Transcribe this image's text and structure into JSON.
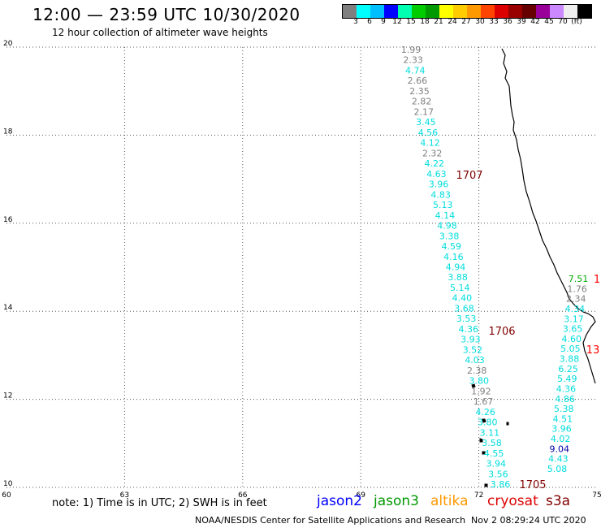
{
  "header": {
    "title": "12:00 — 23:59 UTC 10/30/2020",
    "subtitle": "12 hour collection of altimeter wave heights"
  },
  "colorbar": {
    "colors": [
      "#7f7f7f",
      "#00ffff",
      "#00bfff",
      "#0000ff",
      "#00ffb0",
      "#00cc00",
      "#009900",
      "#ffff00",
      "#ffcc00",
      "#ff9900",
      "#ff4400",
      "#dd0000",
      "#990000",
      "#660000",
      "#990099",
      "#cc88ff",
      "#eeeeee",
      "#000000"
    ],
    "labels": [
      "3",
      "6",
      "9",
      "12",
      "15",
      "18",
      "21",
      "24",
      "27",
      "30",
      "33",
      "36",
      "39",
      "42",
      "45",
      "70",
      "(ft)"
    ]
  },
  "axes": {
    "x_ticks": [
      "60",
      "63",
      "66",
      "69",
      "72",
      "75"
    ],
    "y_ticks": [
      "20",
      "18",
      "16",
      "14",
      "12",
      "10"
    ]
  },
  "tracks": {
    "left": [
      {
        "v": "1.99",
        "c": "#808080"
      },
      {
        "v": "2.33",
        "c": "#808080"
      },
      {
        "v": "4.74",
        "c": "#00dddd"
      },
      {
        "v": "2.66",
        "c": "#808080"
      },
      {
        "v": "2.35",
        "c": "#808080"
      },
      {
        "v": "2.82",
        "c": "#808080"
      },
      {
        "v": "2.17",
        "c": "#808080"
      },
      {
        "v": "3.45",
        "c": "#00dddd"
      },
      {
        "v": "4.56",
        "c": "#00dddd"
      },
      {
        "v": "4.12",
        "c": "#00dddd"
      },
      {
        "v": "2.32",
        "c": "#808080"
      },
      {
        "v": "4.22",
        "c": "#00dddd"
      },
      {
        "v": "4.63",
        "c": "#00dddd"
      },
      {
        "v": "3.96",
        "c": "#00dddd"
      },
      {
        "v": "4.83",
        "c": "#00dddd"
      },
      {
        "v": "5.13",
        "c": "#00dddd"
      },
      {
        "v": "4.14",
        "c": "#00dddd"
      },
      {
        "v": "4.98",
        "c": "#00dddd"
      },
      {
        "v": "3.38",
        "c": "#00dddd"
      },
      {
        "v": "4.59",
        "c": "#00dddd"
      },
      {
        "v": "4.16",
        "c": "#00dddd"
      },
      {
        "v": "4.94",
        "c": "#00dddd"
      },
      {
        "v": "3.88",
        "c": "#00dddd"
      },
      {
        "v": "5.14",
        "c": "#00dddd"
      },
      {
        "v": "4.40",
        "c": "#00dddd"
      },
      {
        "v": "3.68",
        "c": "#00dddd"
      },
      {
        "v": "3.53",
        "c": "#00dddd"
      },
      {
        "v": "4.36",
        "c": "#00dddd"
      },
      {
        "v": "3.93",
        "c": "#00dddd"
      },
      {
        "v": "3.52",
        "c": "#00dddd"
      },
      {
        "v": "4.03",
        "c": "#00dddd"
      },
      {
        "v": "2.38",
        "c": "#808080"
      },
      {
        "v": "3.80",
        "c": "#00dddd"
      },
      {
        "v": "1.92",
        "c": "#808080"
      },
      {
        "v": "1.67",
        "c": "#808080"
      },
      {
        "v": "4.26",
        "c": "#00dddd"
      },
      {
        "v": "3.80",
        "c": "#00dddd"
      },
      {
        "v": "3.11",
        "c": "#00dddd"
      },
      {
        "v": "3.58",
        "c": "#00dddd"
      },
      {
        "v": "4.55",
        "c": "#00dddd"
      },
      {
        "v": "3.94",
        "c": "#00dddd"
      },
      {
        "v": "3.56",
        "c": "#00dddd"
      },
      {
        "v": "3.86",
        "c": "#00dddd"
      }
    ],
    "right": [
      {
        "v": "7.51",
        "c": "#00aa00"
      },
      {
        "v": "1.76",
        "c": "#808080"
      },
      {
        "v": "2.34",
        "c": "#808080"
      },
      {
        "v": "4.34",
        "c": "#00dddd"
      },
      {
        "v": "3.17",
        "c": "#00dddd"
      },
      {
        "v": "3.65",
        "c": "#00dddd"
      },
      {
        "v": "4.60",
        "c": "#00dddd"
      },
      {
        "v": "5.05",
        "c": "#00dddd"
      },
      {
        "v": "3.88",
        "c": "#00dddd"
      },
      {
        "v": "6.25",
        "c": "#00dddd"
      },
      {
        "v": "5.49",
        "c": "#00dddd"
      },
      {
        "v": "4.36",
        "c": "#00dddd"
      },
      {
        "v": "4.86",
        "c": "#00dddd"
      },
      {
        "v": "5.38",
        "c": "#00dddd"
      },
      {
        "v": "4.51",
        "c": "#00dddd"
      },
      {
        "v": "3.96",
        "c": "#00dddd"
      },
      {
        "v": "4.02",
        "c": "#00dddd"
      },
      {
        "v": "9.04",
        "c": "#0000aa"
      },
      {
        "v": "4.43",
        "c": "#00dddd"
      },
      {
        "v": "5.08",
        "c": "#00dddd"
      }
    ],
    "times": [
      {
        "t": "1707",
        "c": "#800000"
      },
      {
        "t": "1706",
        "c": "#800000"
      },
      {
        "t": "1705",
        "c": "#800000"
      },
      {
        "t": "1",
        "c": "#ff0000"
      },
      {
        "t": "13",
        "c": "#ff0000"
      }
    ]
  },
  "legend": {
    "note": "note:  1) Time is in UTC;  2) SWH is in feet",
    "satellites": [
      {
        "name": "jason2",
        "color": "#0000ff"
      },
      {
        "name": "jason3",
        "color": "#009900"
      },
      {
        "name": "altika",
        "color": "#ff9900"
      },
      {
        "name": "cryosat",
        "color": "#dd0000"
      },
      {
        "name": "s3a",
        "color": "#800000"
      }
    ]
  },
  "footer": {
    "credit": "NOAA/NESDIS Center for Satellite Applications and Research",
    "timestamp": "Nov  2 08:29:24 UTC 2020"
  }
}
